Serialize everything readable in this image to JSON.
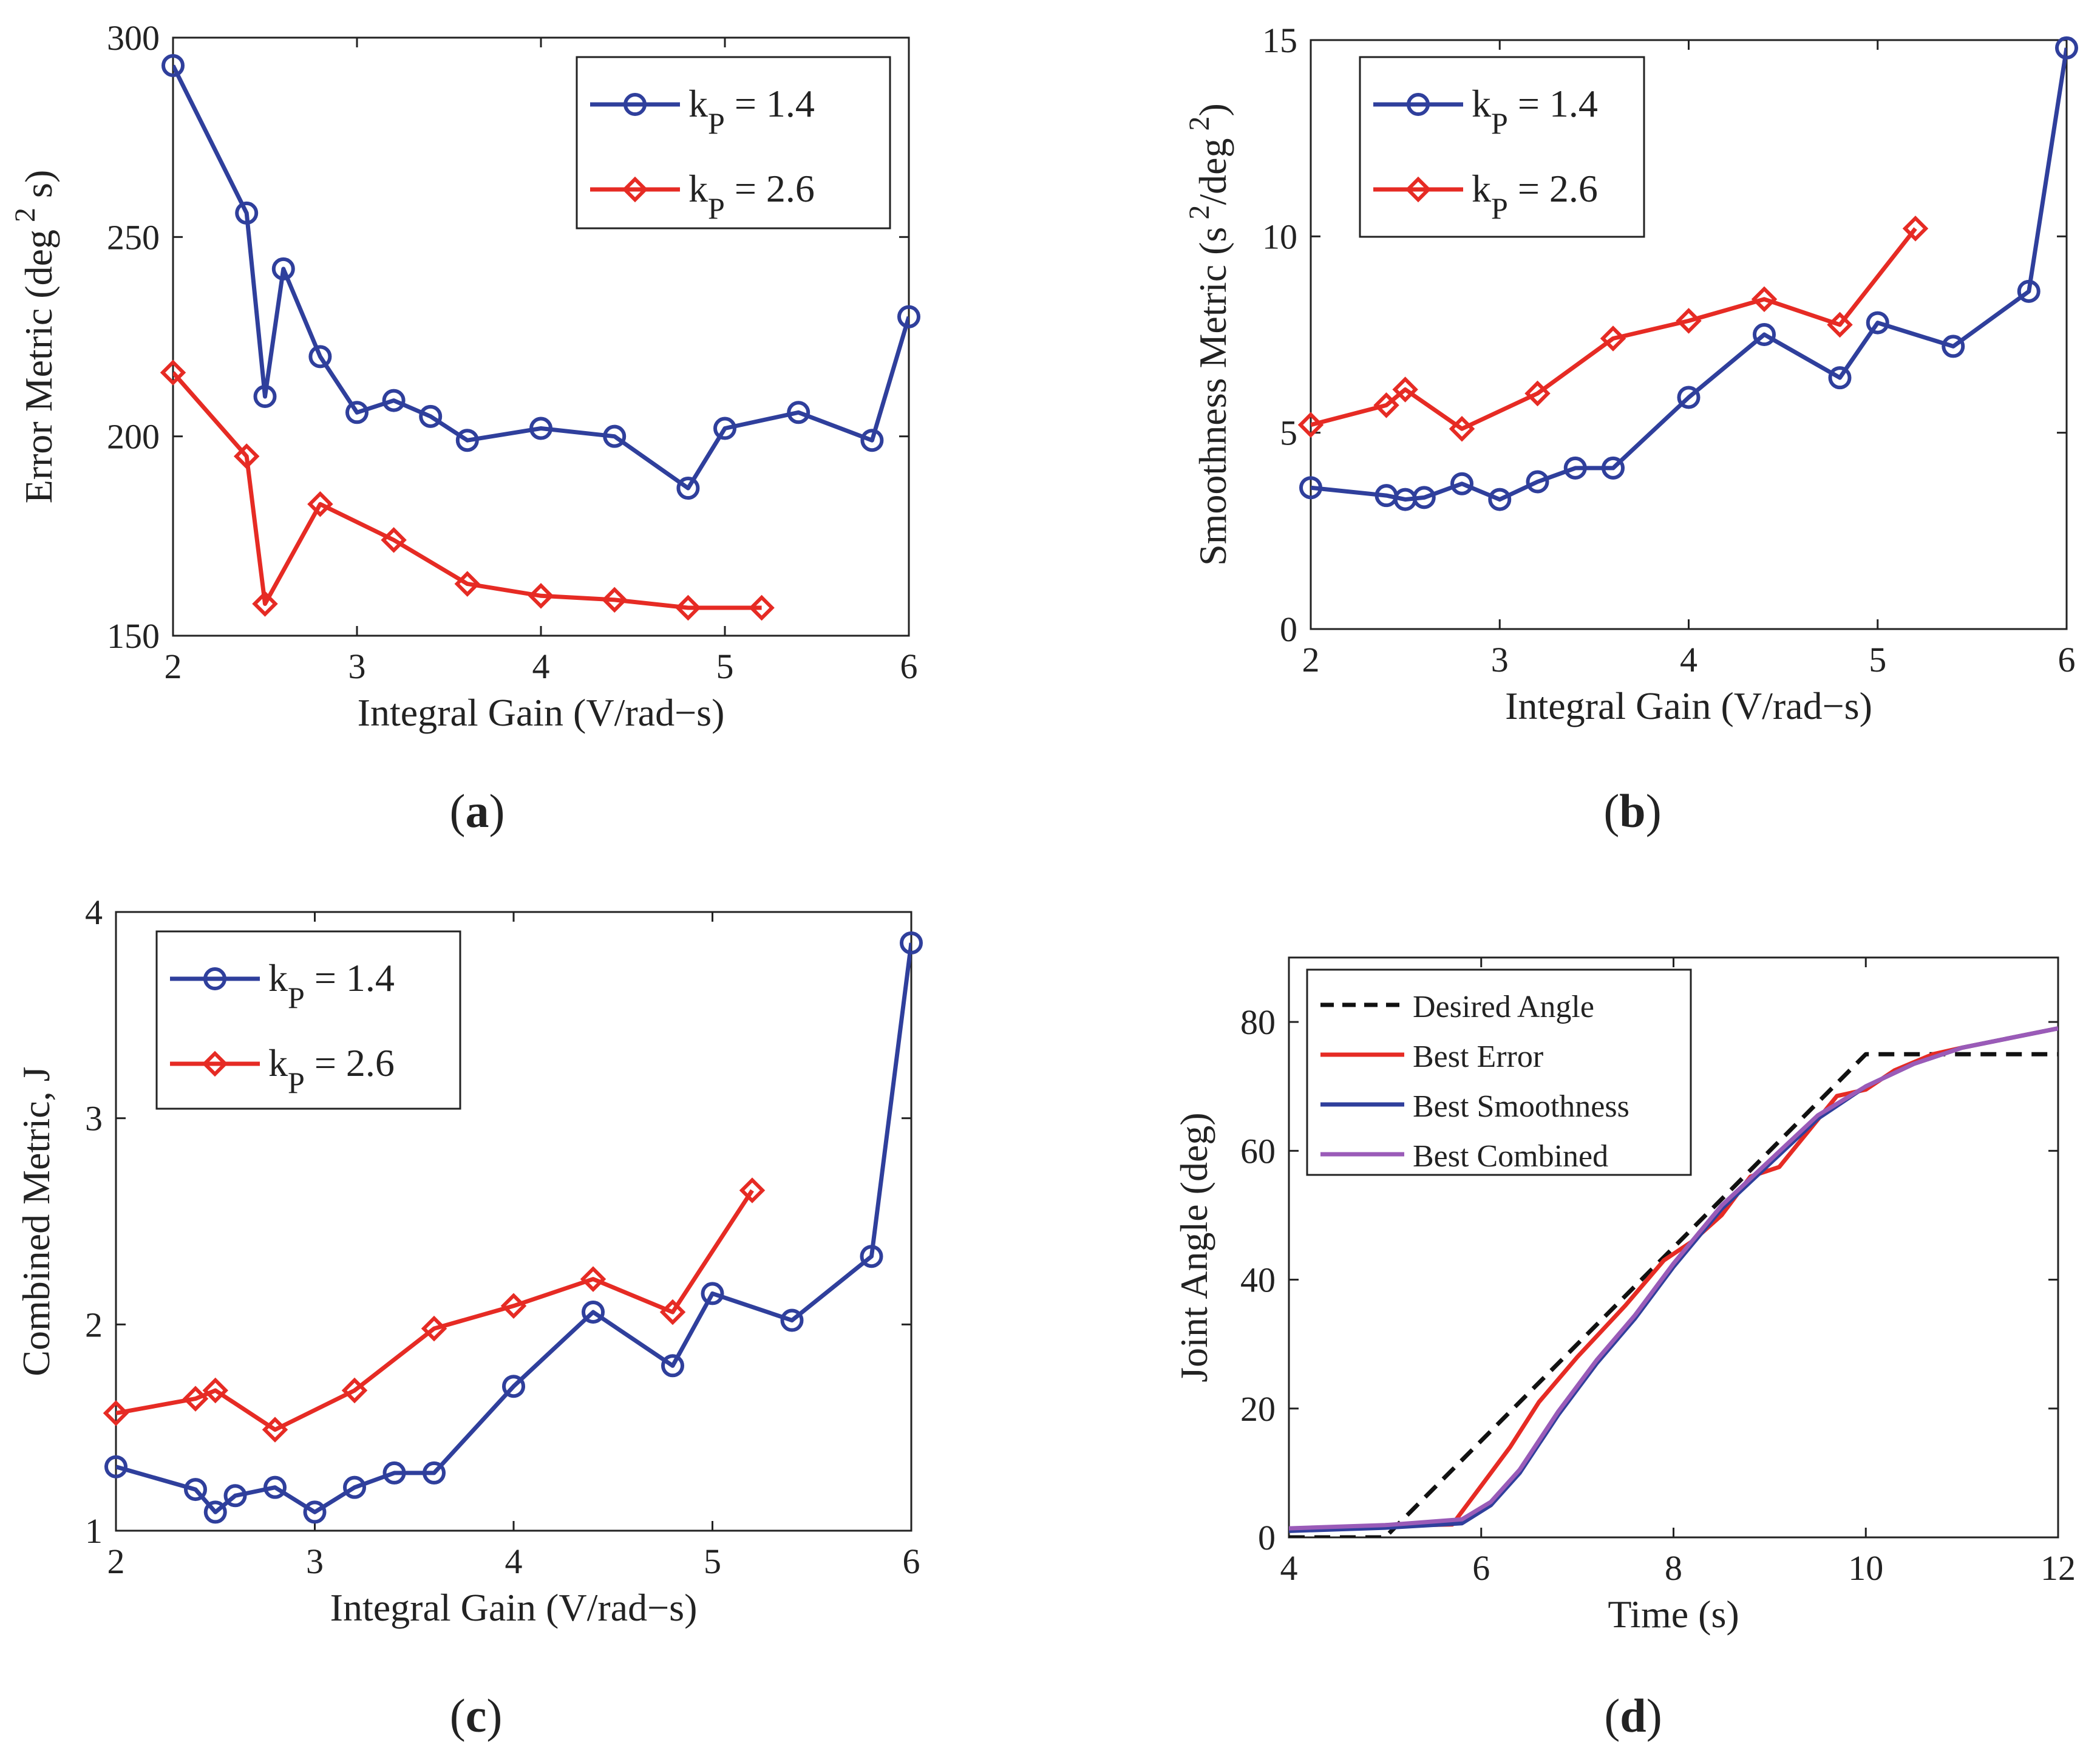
{
  "colors": {
    "blue": "#2f3f9c",
    "red": "#e62b24",
    "purple": "#9a5bb8",
    "black": "#111111",
    "axis": "#222222"
  },
  "chart_data": [
    {
      "id": "a",
      "panel_label": "(a)",
      "type": "line",
      "xlabel": "Integral Gain (V/rad−s)",
      "ylabel": "Error Metric (deg",
      "ylabel_sup": "2",
      "ylabel_tail": " s)",
      "xlim": [
        2,
        6
      ],
      "ylim": [
        150,
        300
      ],
      "xticks": [
        2,
        3,
        4,
        5,
        6
      ],
      "yticks": [
        150,
        200,
        250,
        300
      ],
      "legend_position": "top-right",
      "series": [
        {
          "name": "k",
          "subscript": "P",
          "value_text": " = 1.4",
          "color": "blue",
          "marker": "circle",
          "x": [
            2.0,
            2.4,
            2.5,
            2.6,
            2.8,
            3.0,
            3.2,
            3.4,
            3.6,
            4.0,
            4.4,
            4.8,
            5.0,
            5.4,
            5.8,
            6.0
          ],
          "y": [
            293,
            256,
            210,
            242,
            220,
            206,
            209,
            205,
            199,
            202,
            200,
            187,
            202,
            206,
            199,
            230
          ]
        },
        {
          "name": "k",
          "subscript": "P",
          "value_text": " = 2.6",
          "color": "red",
          "marker": "diamond",
          "x": [
            2.0,
            2.4,
            2.5,
            2.8,
            3.2,
            3.6,
            4.0,
            4.4,
            4.8,
            5.2
          ],
          "y": [
            216,
            195,
            158,
            183,
            174,
            163,
            160,
            159,
            157,
            157
          ]
        }
      ]
    },
    {
      "id": "b",
      "panel_label": "(b)",
      "type": "line",
      "xlabel": "Integral Gain (V/rad−s)",
      "ylabel": "Smoothness Metric (s",
      "ylabel_sup": "2",
      "ylabel_tail": "/deg",
      "ylabel_sup2": "2",
      "ylabel_end": ")",
      "xlim": [
        2,
        6
      ],
      "ylim": [
        0,
        15
      ],
      "xticks": [
        2,
        3,
        4,
        5,
        6
      ],
      "yticks": [
        0,
        5,
        10,
        15
      ],
      "legend_position": "top-left",
      "series": [
        {
          "name": "k",
          "subscript": "P",
          "value_text": " = 1.4",
          "color": "blue",
          "marker": "circle",
          "x": [
            2.0,
            2.4,
            2.5,
            2.6,
            2.8,
            3.0,
            3.2,
            3.4,
            3.6,
            4.0,
            4.4,
            4.8,
            5.0,
            5.4,
            5.8,
            6.0
          ],
          "y": [
            3.6,
            3.4,
            3.3,
            3.35,
            3.7,
            3.3,
            3.75,
            4.1,
            4.1,
            5.9,
            7.5,
            6.4,
            7.8,
            7.2,
            8.6,
            14.8
          ]
        },
        {
          "name": "k",
          "subscript": "P",
          "value_text": " = 2.6",
          "color": "red",
          "marker": "diamond",
          "x": [
            2.0,
            2.4,
            2.5,
            2.8,
            3.2,
            3.6,
            4.0,
            4.4,
            4.8,
            5.2
          ],
          "y": [
            5.2,
            5.7,
            6.1,
            5.1,
            6.0,
            7.4,
            7.85,
            8.4,
            7.75,
            10.2
          ]
        }
      ]
    },
    {
      "id": "c",
      "panel_label": "(c)",
      "type": "line",
      "xlabel": "Integral Gain (V/rad−s)",
      "ylabel": "Combined Metric, J",
      "xlim": [
        2,
        6
      ],
      "ylim": [
        1,
        4
      ],
      "xticks": [
        2,
        3,
        4,
        5,
        6
      ],
      "yticks": [
        1,
        2,
        3,
        4
      ],
      "legend_position": "top-left",
      "series": [
        {
          "name": "k",
          "subscript": "P",
          "value_text": " = 1.4",
          "color": "blue",
          "marker": "circle",
          "x": [
            2.0,
            2.4,
            2.5,
            2.6,
            2.8,
            3.0,
            3.2,
            3.4,
            3.6,
            4.0,
            4.4,
            4.8,
            5.0,
            5.4,
            5.8,
            6.0
          ],
          "y": [
            1.31,
            1.2,
            1.09,
            1.17,
            1.21,
            1.09,
            1.21,
            1.28,
            1.28,
            1.7,
            2.06,
            1.8,
            2.15,
            2.02,
            2.33,
            3.85
          ]
        },
        {
          "name": "k",
          "subscript": "P",
          "value_text": " = 2.6",
          "color": "red",
          "marker": "diamond",
          "x": [
            2.0,
            2.4,
            2.5,
            2.8,
            3.2,
            3.6,
            4.0,
            4.4,
            4.8,
            5.2
          ],
          "y": [
            1.57,
            1.64,
            1.68,
            1.49,
            1.68,
            1.98,
            2.09,
            2.22,
            2.06,
            2.65
          ]
        }
      ]
    },
    {
      "id": "d",
      "panel_label": "(d)",
      "type": "line",
      "xlabel": "Time (s)",
      "ylabel": "Joint Angle (deg)",
      "xlim": [
        4,
        12
      ],
      "ylim": [
        0,
        90
      ],
      "xticks": [
        4,
        6,
        8,
        10,
        12
      ],
      "yticks": [
        0,
        20,
        40,
        60,
        80
      ],
      "legend_position": "top-left",
      "series": [
        {
          "name": "Desired Angle",
          "color": "black",
          "dash": true,
          "x": [
            4,
            5.0,
            10.0,
            12.0
          ],
          "y": [
            0,
            0,
            75,
            75
          ]
        },
        {
          "name": "Best Error",
          "color": "red",
          "x": [
            4,
            5.0,
            5.7,
            6.0,
            6.3,
            6.6,
            7.0,
            7.5,
            7.9,
            8.2,
            8.5,
            8.8,
            9.1,
            9.4,
            9.7,
            10.0,
            10.3,
            10.7,
            11.0,
            11.5,
            12.0
          ],
          "y": [
            1.3,
            1.8,
            2.0,
            8,
            14,
            21,
            28,
            36,
            43,
            46,
            50,
            56,
            57.5,
            63,
            68.5,
            69.5,
            72.5,
            75,
            76,
            77.5,
            79
          ]
        },
        {
          "name": "Best Smoothness",
          "color": "blue",
          "x": [
            4,
            5.0,
            5.8,
            6.1,
            6.4,
            6.8,
            7.2,
            7.6,
            8.0,
            8.5,
            9.0,
            9.5,
            10.0,
            10.5,
            11.0,
            11.5,
            12.0
          ],
          "y": [
            1.0,
            1.5,
            2.2,
            5,
            10,
            19,
            27,
            34,
            42,
            51,
            58,
            65,
            70,
            73.5,
            76,
            77.5,
            79
          ]
        },
        {
          "name": "Best Combined",
          "color": "purple",
          "x": [
            4,
            5.0,
            5.8,
            6.1,
            6.4,
            6.8,
            7.2,
            7.6,
            8.0,
            8.5,
            9.0,
            9.5,
            10.0,
            10.5,
            11.0,
            11.5,
            12.0
          ],
          "y": [
            1.4,
            1.9,
            2.8,
            5.5,
            10.5,
            19.5,
            27.5,
            34.5,
            42.5,
            51.5,
            58.5,
            65.5,
            70,
            73.5,
            76,
            77.5,
            79
          ]
        }
      ]
    }
  ]
}
